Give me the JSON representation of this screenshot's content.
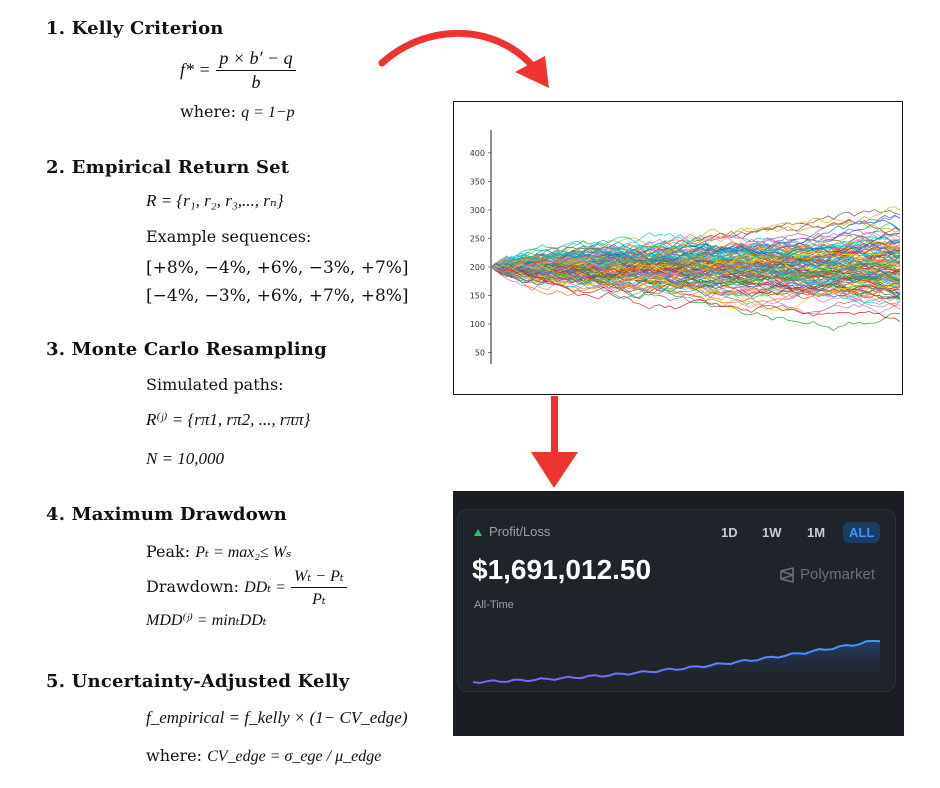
{
  "sections": [
    {
      "title": "1. Kelly Criterion"
    },
    {
      "title": "2. Empirical Return Set"
    },
    {
      "title": "3. Monte Carlo Resampling"
    },
    {
      "title": "4. Maximum Drawdown"
    },
    {
      "title": "5. Uncertainty-Adjusted Kelly"
    }
  ],
  "kelly": {
    "lhs": "f* =",
    "numerator": "p × b′ − q",
    "denominator": "b",
    "where_label": "where:",
    "where_expr": "q = 1−p"
  },
  "empirical": {
    "set_expr": "R = {r₁, r₂, r₃,..., rₙ}",
    "example_label": "Example sequences:",
    "seq1": "[+8%, −4%, +6%, −3%, +7%]",
    "seq2": "[−4%, −3%, +6%, +7%, +8%]"
  },
  "montecarlo": {
    "paths_label": "Simulated paths:",
    "path_expr": "R⁽ʲ⁾ = {rπ1, rπ2, ..., rππ}",
    "n_expr": "N = 10,000"
  },
  "drawdown": {
    "peak_label": "Peak:",
    "peak_expr": "Pₜ = max₂≤ Wₛ",
    "dd_label": "Drawdown:",
    "dd_lhs": "DDₜ =",
    "dd_num": "Wₜ − Pₜ",
    "dd_den": "Pₜ",
    "mdd_expr": "MDD⁽ʲ⁾ = minₜDDₜ"
  },
  "adjusted": {
    "f_expr": "f_empirical = f_kelly × (1− CV_edge)",
    "where_label": "where:",
    "cv_expr": "CV_edge = σ_ege / μ_edge"
  },
  "simulation_plot": {
    "y_ticks": [
      "400",
      "350",
      "300",
      "250",
      "200",
      "150",
      "100",
      "50"
    ],
    "start_value": 200,
    "ylim": [
      30,
      440
    ]
  },
  "pnl_card": {
    "label": "Profit/Loss",
    "value": "$1,691,012.50",
    "period": "All-Time",
    "brand": "Polymarket",
    "timeframes": [
      "1D",
      "1W",
      "1M",
      "ALL"
    ],
    "active_timeframe": "ALL",
    "colors": {
      "up": "#22c55e",
      "line_start": "#8b5cf6",
      "line_end": "#3b9cff"
    }
  },
  "colors": {
    "arrow": "#ee3333"
  }
}
